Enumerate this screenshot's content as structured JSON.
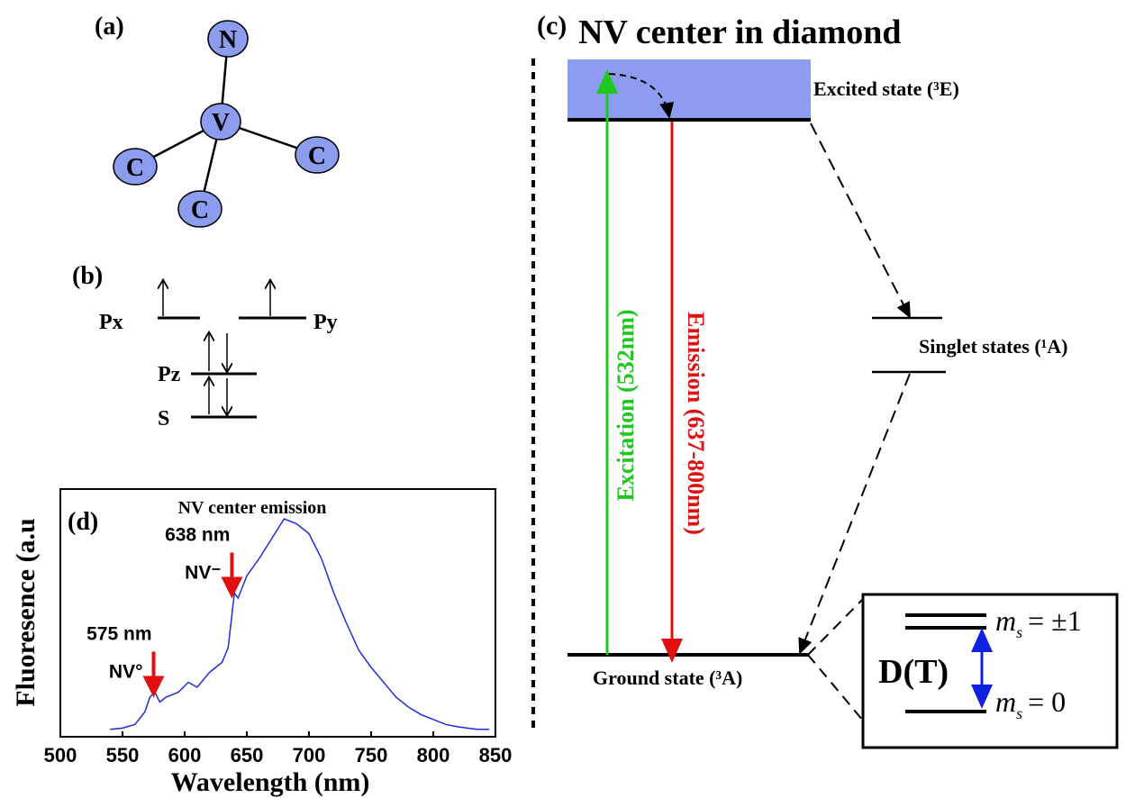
{
  "panels": {
    "a": {
      "label": "(a)",
      "atoms": [
        "N",
        "V",
        "C",
        "C",
        "C"
      ]
    },
    "b": {
      "label": "(b)",
      "orbitals": [
        "Px",
        "Py",
        "Pz",
        "S"
      ]
    },
    "c": {
      "label": "(c)",
      "title": "NV center in diamond",
      "excited": "Excited state (³E)",
      "excitation": "Excitation (532nm)",
      "emission": "Emission (637-800nm)",
      "singlet": "Singlet states (¹A)",
      "ground": "Ground state (³A)",
      "zfs": "D(T)",
      "upper": {
        "symbol": "m",
        "subscript": "s",
        "value": "= ±1"
      },
      "lower": {
        "symbol": "m",
        "subscript": "s",
        "value": "= 0"
      }
    },
    "d": {
      "label": "(d)"
    }
  },
  "chart_data": {
    "type": "line",
    "title": "NV center emission",
    "x_label": "Wavelength (nm)",
    "y_label": "Fluoresence (a.u",
    "x": [
      540,
      550,
      560,
      568,
      572,
      576,
      580,
      585,
      595,
      603,
      610,
      620,
      630,
      635,
      640,
      643,
      650,
      660,
      670,
      680,
      690,
      700,
      710,
      720,
      730,
      740,
      750,
      760,
      770,
      780,
      790,
      800,
      810,
      820,
      835,
      845
    ],
    "series": [
      {
        "name": "NV center emission",
        "color": "#1f2fd0",
        "values": [
          0.03,
          0.035,
          0.05,
          0.1,
          0.16,
          0.18,
          0.14,
          0.16,
          0.18,
          0.22,
          0.2,
          0.26,
          0.3,
          0.36,
          0.58,
          0.56,
          0.65,
          0.72,
          0.8,
          0.88,
          0.86,
          0.82,
          0.72,
          0.58,
          0.46,
          0.35,
          0.28,
          0.22,
          0.16,
          0.12,
          0.09,
          0.07,
          0.05,
          0.04,
          0.03,
          0.03
        ]
      }
    ],
    "xlim": [
      500,
      850
    ],
    "xticks": [
      500,
      550,
      600,
      650,
      700,
      750,
      800,
      850
    ],
    "ylim": [
      0,
      1
    ],
    "annotations": [
      {
        "text": "638 nm",
        "sub": "NV⁻",
        "x": 638
      },
      {
        "text": "575 nm",
        "sub": "NV°",
        "x": 575
      }
    ]
  }
}
